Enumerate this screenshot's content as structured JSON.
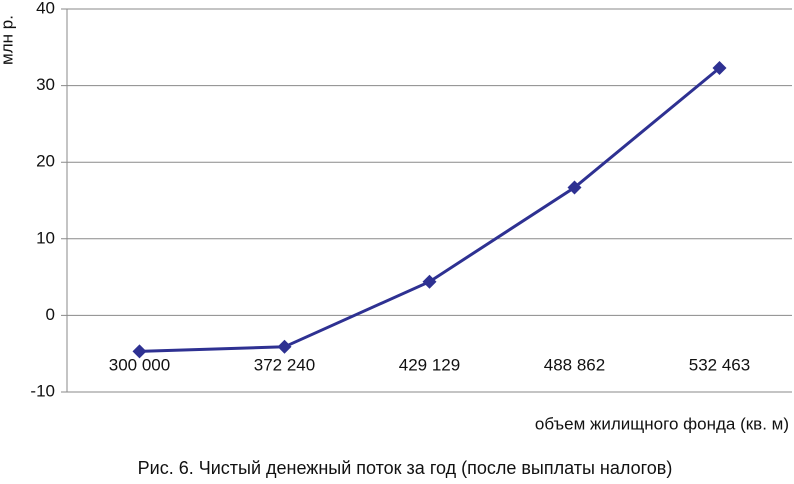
{
  "chart_data": {
    "type": "line",
    "caption": "Рис. 6. Чистый денежный поток за год (после выплаты налогов)",
    "y_label": "млн р.",
    "x_label": "объем жилищного фонда (кв. м)",
    "categories": [
      "300 000",
      "372 240",
      "429 129",
      "488 862",
      "532 463"
    ],
    "series": [
      {
        "color": "#2e3192",
        "values": [
          -4.7,
          -4.1,
          4.4,
          16.7,
          32.3
        ]
      }
    ],
    "ylim": [
      -10,
      40
    ],
    "yticks": [
      -10,
      0,
      10,
      20,
      30,
      40
    ],
    "grid": true
  }
}
